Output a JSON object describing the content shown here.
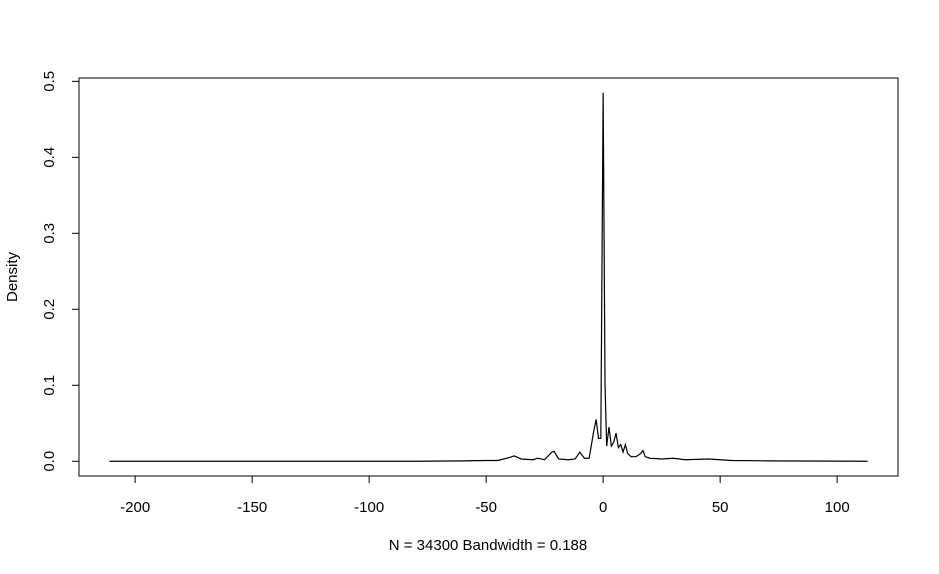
{
  "chart_data": {
    "type": "line",
    "x_label": "N = 34300   Bandwidth = 0.188",
    "y_label": "Density",
    "color": "#000000",
    "x": [
      -211,
      -80,
      -60,
      -50,
      -45,
      -40,
      -38,
      -35,
      -30,
      -28,
      -25,
      -22,
      -21,
      -19,
      -15,
      -12,
      -10,
      -8,
      -6,
      -4,
      -3,
      -2,
      -1,
      0,
      0.8,
      1.5,
      2.5,
      3.5,
      4.5,
      5.5,
      6.5,
      7.5,
      8.5,
      9.5,
      10.5,
      12,
      14,
      16,
      17,
      18,
      20,
      25,
      30,
      35,
      45,
      55,
      70,
      85,
      113
    ],
    "values": [
      0,
      0,
      0.0005,
      0.001,
      0.001,
      0.005,
      0.007,
      0.003,
      0.002,
      0.004,
      0.002,
      0.012,
      0.013,
      0.003,
      0.002,
      0.003,
      0.012,
      0.004,
      0.004,
      0.04,
      0.055,
      0.03,
      0.03,
      0.485,
      0.1,
      0.02,
      0.045,
      0.02,
      0.025,
      0.037,
      0.018,
      0.022,
      0.012,
      0.022,
      0.01,
      0.006,
      0.006,
      0.01,
      0.014,
      0.006,
      0.004,
      0.003,
      0.004,
      0.002,
      0.003,
      0.001,
      0.0005,
      0.0003,
      0
    ],
    "xlim": [
      -224,
      126
    ],
    "ylim": [
      -0.0194,
      0.5044
    ],
    "xticks": [
      -200,
      -150,
      -100,
      -50,
      0,
      50,
      100
    ],
    "yticks": [
      {
        "value": 0,
        "label": "0.0"
      },
      0.1,
      0.2,
      0.3,
      0.4,
      0.5
    ]
  }
}
